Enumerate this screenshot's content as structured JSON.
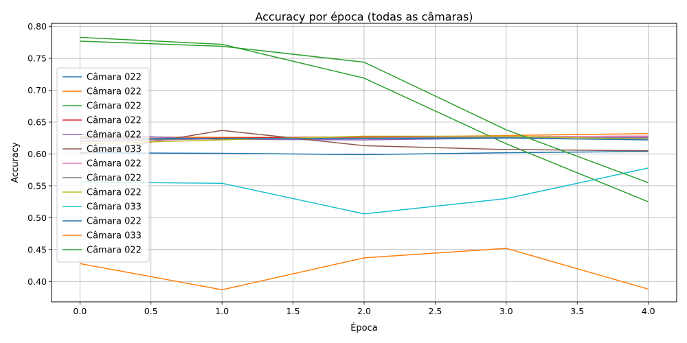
{
  "chart_data": {
    "type": "line",
    "title": "Accuracy por época (todas as câmaras)",
    "xlabel": "Época",
    "ylabel": "Accuracy",
    "xlim": [
      -0.2,
      4.2
    ],
    "ylim": [
      0.368,
      0.805
    ],
    "xticks": [
      0.0,
      0.5,
      1.0,
      1.5,
      2.0,
      2.5,
      3.0,
      3.5,
      4.0
    ],
    "xtick_labels": [
      "0.0",
      "0.5",
      "1.0",
      "1.5",
      "2.0",
      "2.5",
      "3.0",
      "3.5",
      "4.0"
    ],
    "yticks": [
      0.4,
      0.45,
      0.5,
      0.55,
      0.6,
      0.65,
      0.7,
      0.75,
      0.8
    ],
    "ytick_labels": [
      "0.40",
      "0.45",
      "0.50",
      "0.55",
      "0.60",
      "0.65",
      "0.70",
      "0.75",
      "0.80"
    ],
    "grid": true,
    "legend_position": "center-left",
    "x": [
      0,
      1,
      2,
      3,
      4
    ],
    "series": [
      {
        "name": "Câmara 022",
        "color": "#1f77b4",
        "values": [
          0.602,
          0.601,
          0.599,
          0.602,
          0.604
        ]
      },
      {
        "name": "Câmara 022",
        "color": "#ff7f0e",
        "values": [
          0.627,
          0.626,
          0.626,
          0.629,
          0.632
        ]
      },
      {
        "name": "Câmara 022",
        "color": "#2ca02c",
        "values": [
          0.783,
          0.772,
          0.719,
          0.616,
          0.525
        ]
      },
      {
        "name": "Câmara 022",
        "color": "#d62728",
        "values": [
          0.624,
          0.625,
          0.627,
          0.627,
          0.628
        ]
      },
      {
        "name": "Câmara 022",
        "color": "#9467bd",
        "values": [
          0.631,
          0.623,
          0.622,
          0.625,
          0.626
        ]
      },
      {
        "name": "Câmara 033",
        "color": "#8c564b",
        "values": [
          0.6,
          0.637,
          0.613,
          0.607,
          0.605
        ]
      },
      {
        "name": "Câmara 022",
        "color": "#e377c2",
        "values": [
          0.619,
          0.624,
          0.625,
          0.627,
          0.628
        ]
      },
      {
        "name": "Câmara 022",
        "color": "#7f7f7f",
        "values": [
          0.621,
          0.624,
          0.625,
          0.626,
          0.625
        ]
      },
      {
        "name": "Câmara 022",
        "color": "#bcbd22",
        "values": [
          0.616,
          0.622,
          0.628,
          0.628,
          0.623
        ]
      },
      {
        "name": "Câmara 033",
        "color": "#17becf",
        "values": [
          0.556,
          0.554,
          0.506,
          0.53,
          0.578
        ]
      },
      {
        "name": "Câmara 022",
        "color": "#1f77b4",
        "values": [
          0.625,
          0.624,
          0.624,
          0.625,
          0.622
        ]
      },
      {
        "name": "Câmara 033",
        "color": "#ff7f0e",
        "values": [
          0.428,
          0.387,
          0.437,
          0.452,
          0.388
        ]
      },
      {
        "name": "Câmara 022",
        "color": "#2ca02c",
        "values": [
          0.777,
          0.769,
          0.744,
          0.638,
          0.555
        ]
      }
    ]
  }
}
